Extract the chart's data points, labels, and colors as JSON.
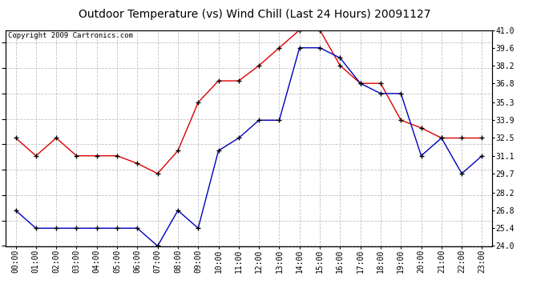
{
  "title": "Outdoor Temperature (vs) Wind Chill (Last 24 Hours) 20091127",
  "copyright": "Copyright 2009 Cartronics.com",
  "hours": [
    "00:00",
    "01:00",
    "02:00",
    "03:00",
    "04:00",
    "05:00",
    "06:00",
    "07:00",
    "08:00",
    "09:00",
    "10:00",
    "11:00",
    "12:00",
    "13:00",
    "14:00",
    "15:00",
    "16:00",
    "17:00",
    "18:00",
    "19:00",
    "20:00",
    "21:00",
    "22:00",
    "23:00"
  ],
  "temp_red": [
    32.5,
    31.1,
    32.5,
    31.1,
    31.1,
    31.1,
    30.5,
    29.7,
    31.5,
    35.3,
    37.0,
    37.0,
    38.2,
    39.6,
    41.0,
    41.0,
    38.2,
    36.8,
    36.8,
    33.9,
    33.3,
    32.5,
    32.5,
    32.5
  ],
  "wind_chill_blue": [
    26.8,
    25.4,
    25.4,
    25.4,
    25.4,
    25.4,
    25.4,
    24.0,
    26.8,
    25.4,
    31.5,
    32.5,
    33.9,
    33.9,
    39.6,
    39.6,
    38.8,
    36.8,
    36.0,
    36.0,
    31.1,
    32.5,
    29.7,
    31.1
  ],
  "ylim": [
    24.0,
    41.0
  ],
  "yticks": [
    24.0,
    25.4,
    26.8,
    28.2,
    29.7,
    31.1,
    32.5,
    33.9,
    35.3,
    36.8,
    38.2,
    39.6,
    41.0
  ],
  "red_color": "#dd0000",
  "blue_color": "#0000bb",
  "bg_color": "#ffffff",
  "plot_bg_color": "#ffffff",
  "grid_color": "#bbbbbb",
  "title_fontsize": 10,
  "copyright_fontsize": 6.5,
  "tick_fontsize": 7
}
